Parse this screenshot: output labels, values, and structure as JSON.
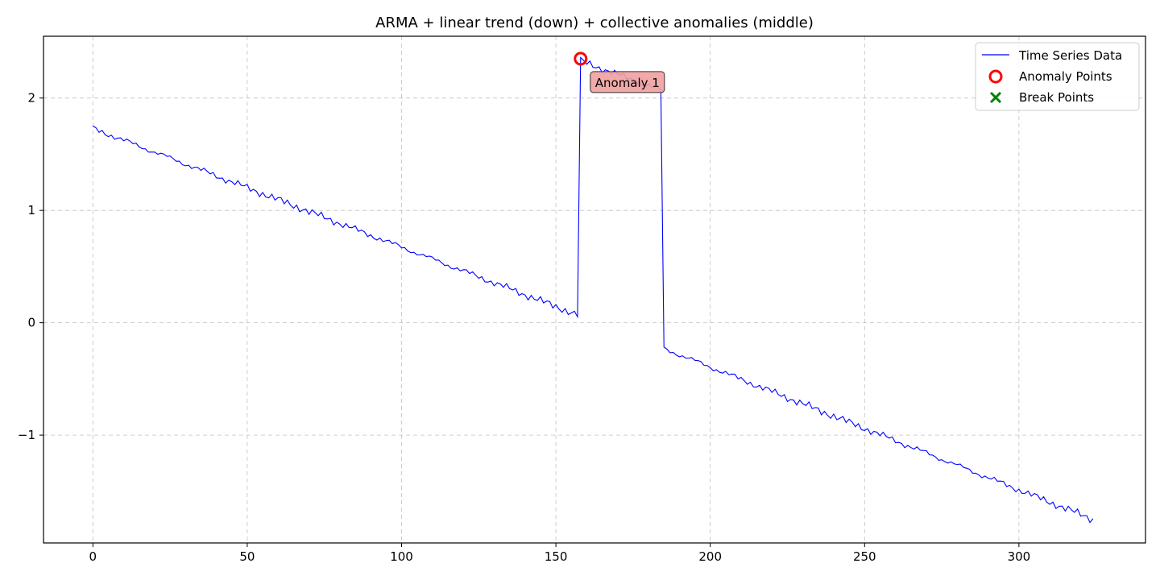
{
  "chart_data": {
    "type": "line",
    "title": "ARMA + linear trend (down) + collective anomalies (middle)",
    "xlabel": "",
    "ylabel": "",
    "xlim": [
      -16,
      341
    ],
    "ylim": [
      -1.96,
      2.55
    ],
    "xticks": [
      0,
      50,
      100,
      150,
      200,
      250,
      300
    ],
    "yticks": [
      -1,
      0,
      1,
      2
    ],
    "ytick_labels": [
      "−1",
      "0",
      "1",
      "2"
    ],
    "grid": true,
    "legend_position": "top-right",
    "series": [
      {
        "name": "Time Series Data",
        "color": "#0000ff",
        "segments": [
          {
            "x_start": 0,
            "x_end": 157,
            "y_start": 1.73,
            "y_end": 0.07
          },
          {
            "x_start": 158,
            "x_end": 184,
            "y_start": 2.33,
            "y_end": 2.07
          },
          {
            "x_start": 185,
            "x_end": 324,
            "y_start": -0.23,
            "y_end": -1.75
          }
        ]
      }
    ],
    "anomaly_points": {
      "name": "Anomaly Points",
      "color": "#ff0000",
      "points": [
        {
          "x": 158,
          "y": 2.35
        }
      ]
    },
    "break_points": {
      "name": "Break Points",
      "color": "#008000",
      "points": []
    },
    "annotations": [
      {
        "text": "Anomaly 1",
        "x": 158,
        "y": 2.35,
        "bg": "#f0a0a0"
      }
    ]
  }
}
